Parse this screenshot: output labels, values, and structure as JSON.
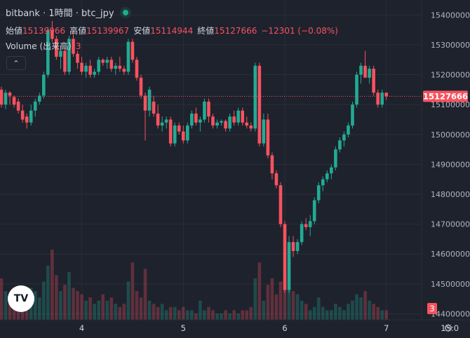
{
  "header": {
    "symbol": "bitbank · 1時間 · btc_jpy",
    "ohlc": [
      {
        "label": "始値",
        "value": "15139966"
      },
      {
        "label": "高値",
        "value": "15139967"
      },
      {
        "label": "安値",
        "value": "15114944"
      },
      {
        "label": "終値",
        "value": "15127666"
      }
    ],
    "change": "−12301 (−0.08%)",
    "volume_label": "Volume (出来高)",
    "volume_value": "3"
  },
  "logo_text": "TV",
  "colors": {
    "up": "#22ab94",
    "down": "#f7525f",
    "background": "#1e222d",
    "grid": "#2a2e39",
    "text": "#b2b5be"
  },
  "icons": {
    "status": "status-dot-icon",
    "collapse": "chevron-up-icon",
    "settings": "gear-icon",
    "logo": "tradingview-logo"
  },
  "chart_data": {
    "type": "candlestick",
    "y_ticks": [
      "15400000",
      "15300000",
      "15200000",
      "15100000",
      "15000000",
      "14900000",
      "14800000",
      "14700000",
      "14600000",
      "14500000",
      "14400000"
    ],
    "y_range": [
      14380000,
      15450000
    ],
    "x_ticks": [
      {
        "label": "4",
        "index": 19
      },
      {
        "label": "5",
        "index": 43
      },
      {
        "label": "6",
        "index": 67
      },
      {
        "label": "7",
        "index": 91
      },
      {
        "label": "15:0",
        "index": 106
      }
    ],
    "last_price": "15127666",
    "last_volume": "3",
    "candles": [
      [
        15150000,
        15160000,
        15090000,
        15100000,
        13
      ],
      [
        15100000,
        15150000,
        15085000,
        15140000,
        9
      ],
      [
        15140000,
        15145000,
        15100000,
        15130000,
        5
      ],
      [
        15125000,
        15130000,
        15090000,
        15100000,
        6
      ],
      [
        15110000,
        15120000,
        15070000,
        15080000,
        7
      ],
      [
        15080000,
        15100000,
        15040000,
        15050000,
        8
      ],
      [
        15060000,
        15070000,
        15020000,
        15040000,
        6
      ],
      [
        15040000,
        15100000,
        15030000,
        15080000,
        10
      ],
      [
        15080000,
        15120000,
        15060000,
        15110000,
        9
      ],
      [
        15110000,
        15140000,
        15100000,
        15130000,
        7
      ],
      [
        15130000,
        15210000,
        15120000,
        15200000,
        12
      ],
      [
        15200000,
        15360000,
        15190000,
        15350000,
        17
      ],
      [
        15350000,
        15380000,
        15310000,
        15320000,
        22
      ],
      [
        15320000,
        15330000,
        15250000,
        15260000,
        14
      ],
      [
        15260000,
        15300000,
        15220000,
        15280000,
        9
      ],
      [
        15280000,
        15290000,
        15200000,
        15210000,
        11
      ],
      [
        15210000,
        15330000,
        15200000,
        15320000,
        15
      ],
      [
        15320000,
        15350000,
        15260000,
        15270000,
        10
      ],
      [
        15270000,
        15280000,
        15220000,
        15240000,
        9
      ],
      [
        15240000,
        15260000,
        15200000,
        15210000,
        8
      ],
      [
        15210000,
        15240000,
        15190000,
        15230000,
        6
      ],
      [
        15230000,
        15250000,
        15190000,
        15200000,
        7
      ],
      [
        15200000,
        15220000,
        15190000,
        15210000,
        5
      ],
      [
        15210000,
        15260000,
        15200000,
        15250000,
        6
      ],
      [
        15250000,
        15255000,
        15230000,
        15240000,
        8
      ],
      [
        15240000,
        15260000,
        15220000,
        15250000,
        6
      ],
      [
        15250000,
        15260000,
        15210000,
        15220000,
        7
      ],
      [
        15220000,
        15240000,
        15200000,
        15230000,
        5
      ],
      [
        15230000,
        15260000,
        15210000,
        15220000,
        4
      ],
      [
        15220000,
        15230000,
        15200000,
        15210000,
        5
      ],
      [
        15210000,
        15320000,
        15200000,
        15310000,
        12
      ],
      [
        15310000,
        15320000,
        15240000,
        15250000,
        18
      ],
      [
        15250000,
        15260000,
        15180000,
        15190000,
        9
      ],
      [
        15190000,
        15200000,
        15120000,
        15130000,
        7
      ],
      [
        15130000,
        15140000,
        14980000,
        15080000,
        16
      ],
      [
        15080000,
        15160000,
        15060000,
        15150000,
        6
      ],
      [
        15110000,
        15130000,
        15060000,
        15070000,
        5
      ],
      [
        15070000,
        15100000,
        15020000,
        15030000,
        4
      ],
      [
        15030000,
        15060000,
        15010000,
        15040000,
        5
      ],
      [
        15040000,
        15060000,
        15020000,
        15050000,
        3
      ],
      [
        15050000,
        15060000,
        14960000,
        14970000,
        4
      ],
      [
        14970000,
        15040000,
        14960000,
        15030000,
        4
      ],
      [
        15030000,
        15040000,
        15000000,
        15010000,
        3
      ],
      [
        15010000,
        15030000,
        14970000,
        14980000,
        4
      ],
      [
        14980000,
        15040000,
        14970000,
        15030000,
        3
      ],
      [
        15030000,
        15080000,
        15020000,
        15070000,
        3
      ],
      [
        15070000,
        15090000,
        15030000,
        15040000,
        2
      ],
      [
        15040000,
        15060000,
        15010000,
        15050000,
        6
      ],
      [
        15050000,
        15120000,
        15040000,
        15110000,
        3
      ],
      [
        15110000,
        15120000,
        15040000,
        15060000,
        4
      ],
      [
        15060000,
        15070000,
        15020000,
        15030000,
        3
      ],
      [
        15030000,
        15050000,
        15020000,
        15040000,
        2
      ],
      [
        15040000,
        15050000,
        15030000,
        15045000,
        2
      ],
      [
        15045000,
        15050000,
        15010000,
        15020000,
        3
      ],
      [
        15020000,
        15070000,
        15010000,
        15060000,
        2
      ],
      [
        15060000,
        15080000,
        15030000,
        15040000,
        3
      ],
      [
        15040000,
        15090000,
        15030000,
        15080000,
        2
      ],
      [
        15080000,
        15090000,
        15030000,
        15040000,
        3
      ],
      [
        15040000,
        15060000,
        15020000,
        15030000,
        3
      ],
      [
        15030000,
        15040000,
        15010000,
        15020000,
        4
      ],
      [
        15020000,
        15240000,
        15010000,
        15230000,
        13
      ],
      [
        15230000,
        15240000,
        14960000,
        14970000,
        18
      ],
      [
        14970000,
        15070000,
        14960000,
        15050000,
        6
      ],
      [
        15050000,
        15070000,
        14920000,
        14930000,
        11
      ],
      [
        14930000,
        14940000,
        14850000,
        14870000,
        13
      ],
      [
        14870000,
        14880000,
        14820000,
        14830000,
        8
      ],
      [
        14830000,
        14840000,
        14690000,
        14700000,
        12
      ],
      [
        14700000,
        14710000,
        14470000,
        14480000,
        14
      ],
      [
        14480000,
        14660000,
        14470000,
        14640000,
        10
      ],
      [
        14640000,
        14660000,
        14590000,
        14610000,
        9
      ],
      [
        14610000,
        14650000,
        14600000,
        14640000,
        8
      ],
      [
        14640000,
        14710000,
        14630000,
        14700000,
        6
      ],
      [
        14700000,
        14720000,
        14680000,
        14690000,
        5
      ],
      [
        14690000,
        14730000,
        14660000,
        14710000,
        3
      ],
      [
        14710000,
        14790000,
        14700000,
        14780000,
        4
      ],
      [
        14780000,
        14840000,
        14770000,
        14830000,
        7
      ],
      [
        14830000,
        14860000,
        14810000,
        14850000,
        4
      ],
      [
        14850000,
        14880000,
        14840000,
        14870000,
        3
      ],
      [
        14870000,
        14900000,
        14850000,
        14890000,
        3
      ],
      [
        14890000,
        14960000,
        14880000,
        14950000,
        5
      ],
      [
        14950000,
        14990000,
        14940000,
        14980000,
        4
      ],
      [
        14980000,
        15010000,
        14960000,
        15000000,
        3
      ],
      [
        15000000,
        15040000,
        14990000,
        15030000,
        5
      ],
      [
        15030000,
        15110000,
        15020000,
        15100000,
        6
      ],
      [
        15100000,
        15210000,
        15090000,
        15200000,
        8
      ],
      [
        15200000,
        15240000,
        15170000,
        15230000,
        7
      ],
      [
        15230000,
        15280000,
        15190000,
        15190000,
        9
      ],
      [
        15190000,
        15230000,
        15170000,
        15220000,
        6
      ],
      [
        15220000,
        15230000,
        15130000,
        15140000,
        5
      ],
      [
        15140000,
        15150000,
        15090000,
        15100000,
        4
      ],
      [
        15100000,
        15150000,
        15090000,
        15140000,
        3
      ],
      [
        15140000,
        15140000,
        15114944,
        15127666,
        3
      ]
    ]
  }
}
